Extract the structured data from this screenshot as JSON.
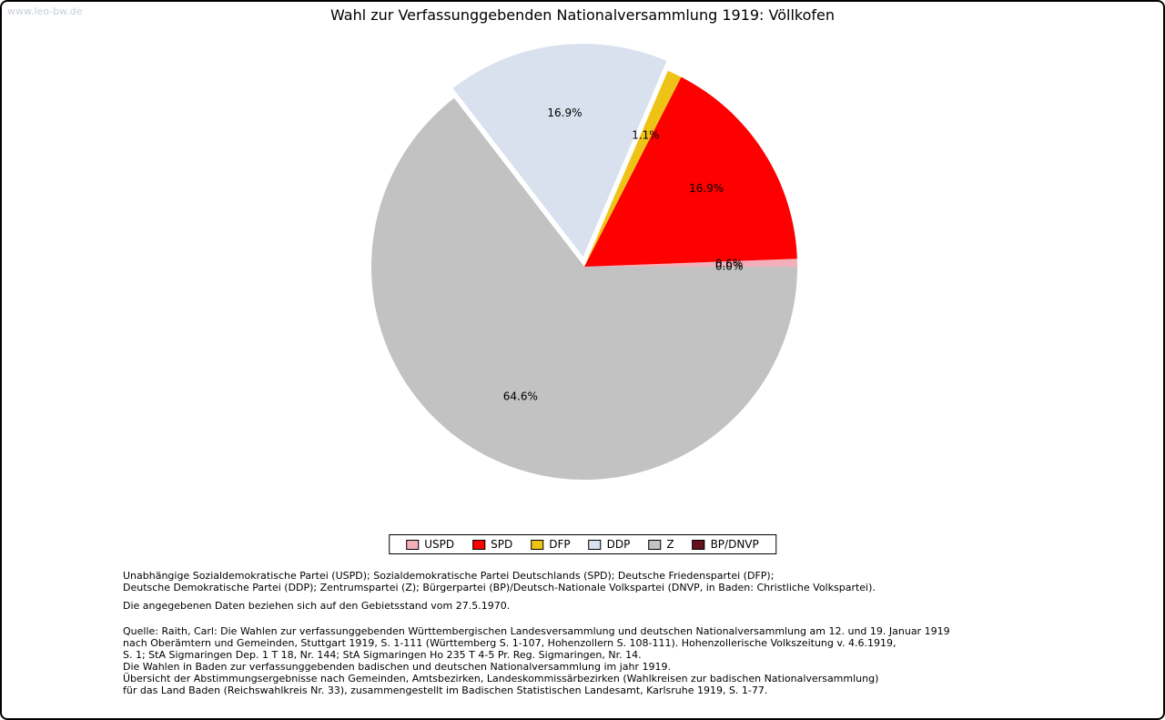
{
  "watermark": "www.leo-bw.de",
  "chart_data": {
    "type": "pie",
    "title": "Wahl zur Verfassunggebenden Nationalversammlung 1919: Völlkofen",
    "legend_position": "bottom",
    "start_angle_deg": 0,
    "direction": "counterclockwise",
    "label_radius_fraction": 0.68,
    "slices": [
      {
        "label": "USPD",
        "value": 0.6,
        "display": "0.6%",
        "color": "#f3b0ba",
        "explode": 0
      },
      {
        "label": "SPD",
        "value": 16.9,
        "display": "16.9%",
        "color": "#fe0000",
        "explode": 0
      },
      {
        "label": "DFP",
        "value": 1.1,
        "display": "1.1%",
        "color": "#efc316",
        "explode": 0
      },
      {
        "label": "DDP",
        "value": 16.9,
        "display": "16.9%",
        "color": "#d9e1ef",
        "explode": 11
      },
      {
        "label": "Z",
        "value": 64.6,
        "display": "64.6%",
        "color": "#c2c2c2",
        "explode": 0
      },
      {
        "label": "BP/DNVP",
        "value": 0.0,
        "display": "0.0%",
        "color": "#65121f",
        "explode": 0
      }
    ]
  },
  "notes": {
    "party_legend_lines": [
      "Unabhängige Sozialdemokratische Partei (USPD); Sozialdemokratische Partei Deutschlands (SPD); Deutsche Friedenspartei (DFP);",
      "Deutsche Demokratische Partei (DDP); Zentrumspartei (Z); Bürgerpartei (BP)/Deutsch-Nationale Volkspartei (DNVP, in Baden: Christliche Volkspartei)."
    ],
    "data_note": "Die angegebenen Daten beziehen sich auf den Gebietsstand vom 27.5.1970.",
    "source_lines": [
      "Quelle: Raith, Carl: Die Wahlen zur verfassunggebenden Württembergischen Landesversammlung und deutschen Nationalversammlung am 12. und 19. Januar 1919",
      "nach Oberämtern und Gemeinden, Stuttgart 1919, S. 1-111 (Württemberg S. 1-107, Hohenzollern S. 108-111). Hohenzollerische Volkszeitung v. 4.6.1919,",
      "S. 1; StA Sigmaringen Dep. 1 T 18, Nr. 144; StA Sigmaringen Ho 235 T 4-5 Pr. Reg. Sigmaringen, Nr. 14.",
      "Die Wahlen in Baden zur verfassunggebenden badischen und deutschen Nationalversammlung im jahr 1919.",
      "Übersicht der Abstimmungsergebnisse nach Gemeinden, Amtsbezirken, Landeskommissärbezirken (Wahlkreisen zur badischen Nationalversammlung)",
      "für das Land Baden (Reichswahlkreis Nr. 33), zusammengestellt im Badischen Statistischen Landesamt, Karlsruhe 1919, S. 1-77."
    ]
  }
}
